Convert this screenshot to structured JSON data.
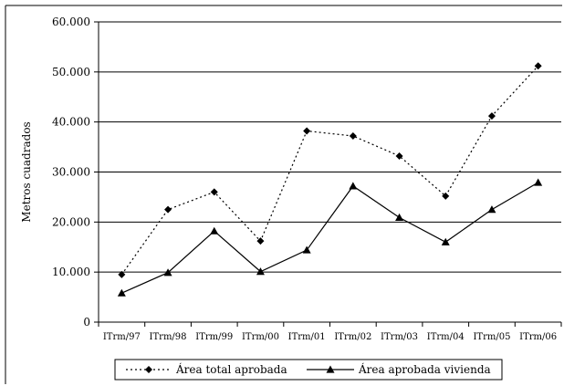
{
  "chart_data": {
    "type": "line",
    "title": "",
    "xlabel": "",
    "ylabel": "Metros cuadrados",
    "categories": [
      "ITrm/97",
      "ITrm/98",
      "ITrm/99",
      "ITrm/00",
      "ITrm/01",
      "ITrm/02",
      "ITrm/03",
      "ITrm/04",
      "ITrm/05",
      "ITrm/06"
    ],
    "ylim": [
      0,
      60000
    ],
    "yticks": [
      0,
      10000,
      20000,
      30000,
      40000,
      50000,
      60000
    ],
    "ytick_labels": [
      "0",
      "10.000",
      "20.000",
      "30.000",
      "40.000",
      "50.000",
      "60.000"
    ],
    "grid": "horizontal",
    "legend_position": "bottom",
    "series": [
      {
        "name": "Área total aprobada",
        "line_style": "dotted",
        "marker": "diamond",
        "color": "#000000",
        "values": [
          9500,
          22500,
          26000,
          16200,
          38200,
          37200,
          33200,
          25200,
          41200,
          51200
        ]
      },
      {
        "name": "Área aprobada vivienda",
        "line_style": "solid",
        "marker": "triangle",
        "color": "#000000",
        "values": [
          5800,
          9900,
          18200,
          10100,
          14400,
          27200,
          20900,
          16000,
          22500,
          27900
        ]
      }
    ]
  }
}
